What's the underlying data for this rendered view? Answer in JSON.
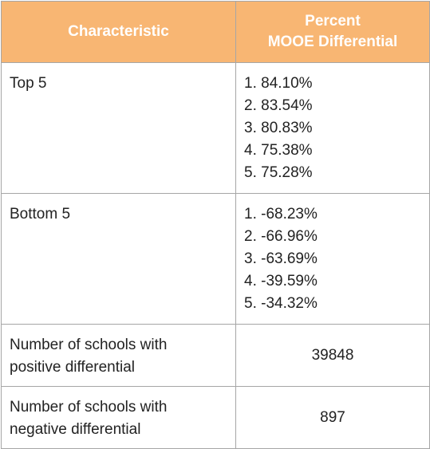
{
  "table": {
    "headers": {
      "characteristic": "Characteristic",
      "percent_line1": "Percent",
      "percent_line2": "MOOE Differential"
    },
    "top5": {
      "label": "Top 5",
      "items": [
        "1. 84.10%",
        "2. 83.54%",
        "3. 80.83%",
        "4. 75.38%",
        "5. 75.28%"
      ]
    },
    "bottom5": {
      "label": "Bottom 5",
      "items": [
        "1. -68.23%",
        "2. -66.96%",
        "3. -63.69%",
        "4. -39.59%",
        "5. -34.32%"
      ]
    },
    "positive": {
      "label_line1": "Number of schools with",
      "label_line2": "positive differential",
      "value": "39848"
    },
    "negative": {
      "label_line1": "Number of schools with",
      "label_line2": "negative differential",
      "value": "897"
    }
  },
  "colors": {
    "header_bg": "#f8b673",
    "header_text": "#ffffff",
    "border": "#a6a6a6",
    "body_text": "#222222"
  }
}
